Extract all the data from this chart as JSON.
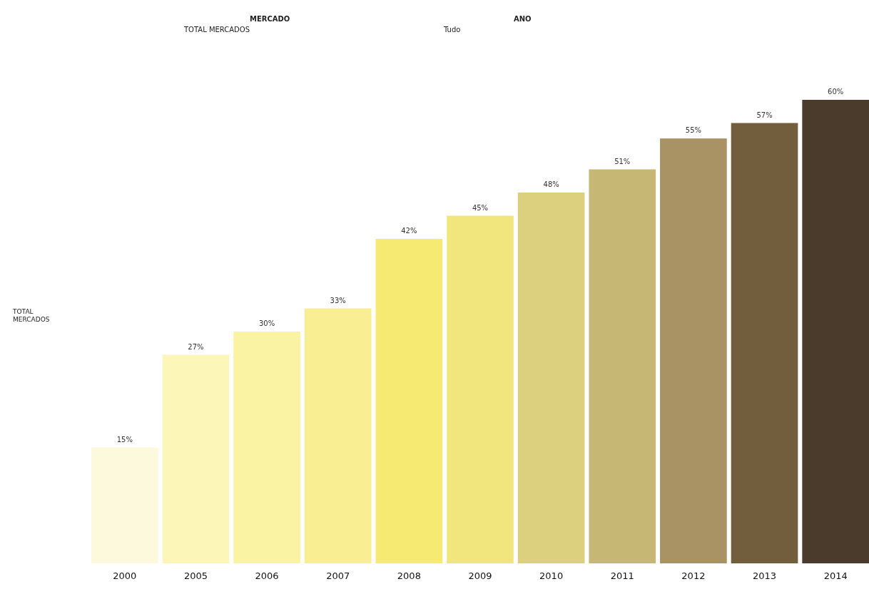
{
  "chart_data": {
    "type": "bar",
    "annotations": [
      "MERCADO",
      "TOTAL MERCADOS",
      "ANO",
      "Tudo",
      "TOTAL MERCADOS"
    ],
    "categories": [
      "2000",
      "2005",
      "2006",
      "2007",
      "2008",
      "2009",
      "2010",
      "2011",
      "2012",
      "2013",
      "2014"
    ],
    "values": [
      15,
      27,
      30,
      33,
      42,
      45,
      48,
      51,
      55,
      57,
      60
    ],
    "value_labels": [
      "15%",
      "27%",
      "30%",
      "33%",
      "42%",
      "45%",
      "48%",
      "51%",
      "55%",
      "57%",
      "60%"
    ],
    "colors": [
      "#fdf9dc",
      "#fcf6b8",
      "#fbf3a4",
      "#f9ef92",
      "#f6ea72",
      "#f1e67e",
      "#dcd07e",
      "#c6b774",
      "#a99263",
      "#725d3c",
      "#4a3b2c"
    ],
    "ylim": [
      0,
      60
    ],
    "tick_labels": "x"
  }
}
